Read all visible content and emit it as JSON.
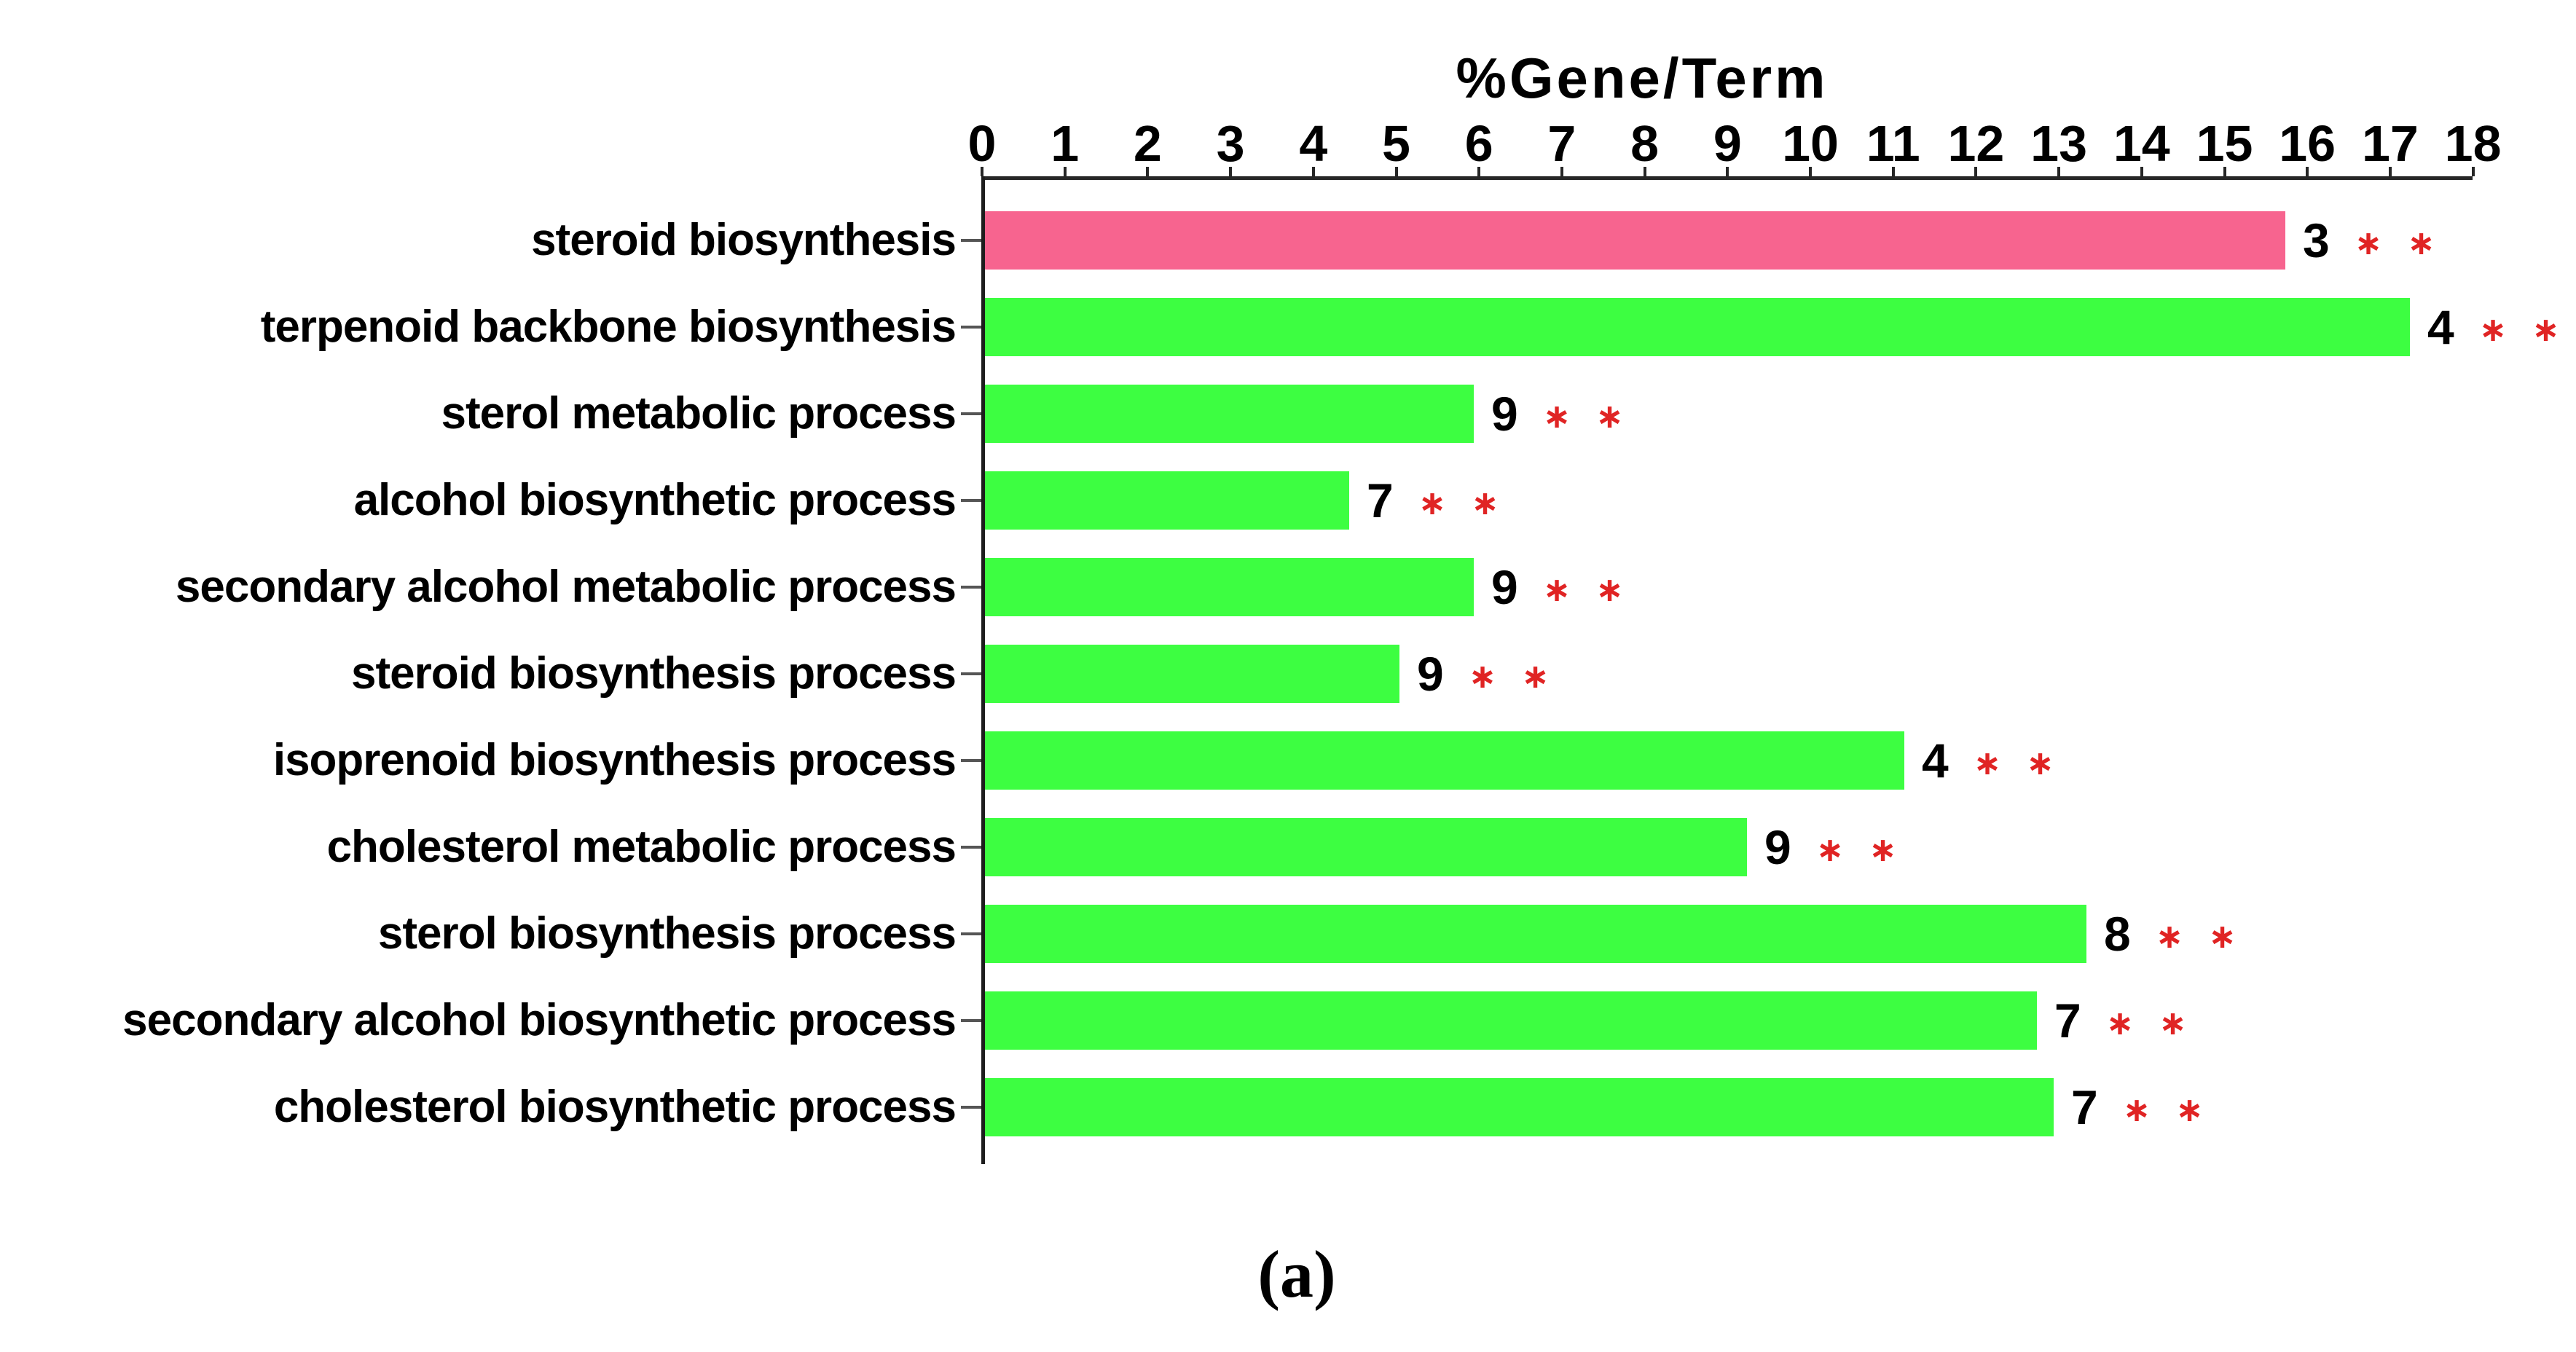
{
  "figure": {
    "caption": "(a)"
  },
  "chart_data": {
    "type": "bar",
    "orientation": "horizontal",
    "title": "%Gene/Term",
    "xlabel": "%Gene/Term",
    "xlim": [
      0,
      18
    ],
    "x_ticks": [
      0,
      1,
      2,
      3,
      4,
      5,
      6,
      7,
      8,
      9,
      10,
      11,
      12,
      13,
      14,
      15,
      16,
      17,
      18
    ],
    "grid": false,
    "legend": "none",
    "categories": [
      "steroid biosynthesis",
      "terpenoid backbone biosynthesis",
      "sterol metabolic process",
      "alcohol biosynthetic process",
      "secondary alcohol metabolic process",
      "steroid biosynthesis process",
      "isoprenoid biosynthesis process",
      "cholesterol metabolic process",
      "sterol biosynthesis process",
      "secondary alcohol biosynthetic process",
      "cholesterol biosynthetic process"
    ],
    "series": [
      {
        "name": "%Gene/Term",
        "values": [
          15.7,
          17.2,
          5.9,
          4.4,
          5.9,
          5.0,
          11.1,
          9.2,
          13.3,
          12.7,
          12.9
        ]
      }
    ],
    "bar_end_gene_counts": [
      3,
      4,
      9,
      7,
      9,
      9,
      4,
      9,
      8,
      7,
      7
    ],
    "significance": [
      "**",
      "**",
      "**",
      "**",
      "**",
      "**",
      "**",
      "**",
      "**",
      "**",
      "**"
    ],
    "bar_colors": [
      "#f7648f",
      "#3dfe41",
      "#3dfe41",
      "#3dfe41",
      "#3dfe41",
      "#3dfe41",
      "#3dfe41",
      "#3dfe41",
      "#3dfe41",
      "#3dfe41",
      "#3dfe41"
    ],
    "colors": {
      "highlight_bar": "#f7648f",
      "default_bar": "#3dfe41",
      "significance_marker": "#e02424",
      "axis": "#262626",
      "text": "#000000",
      "background": "#ffffff"
    }
  }
}
